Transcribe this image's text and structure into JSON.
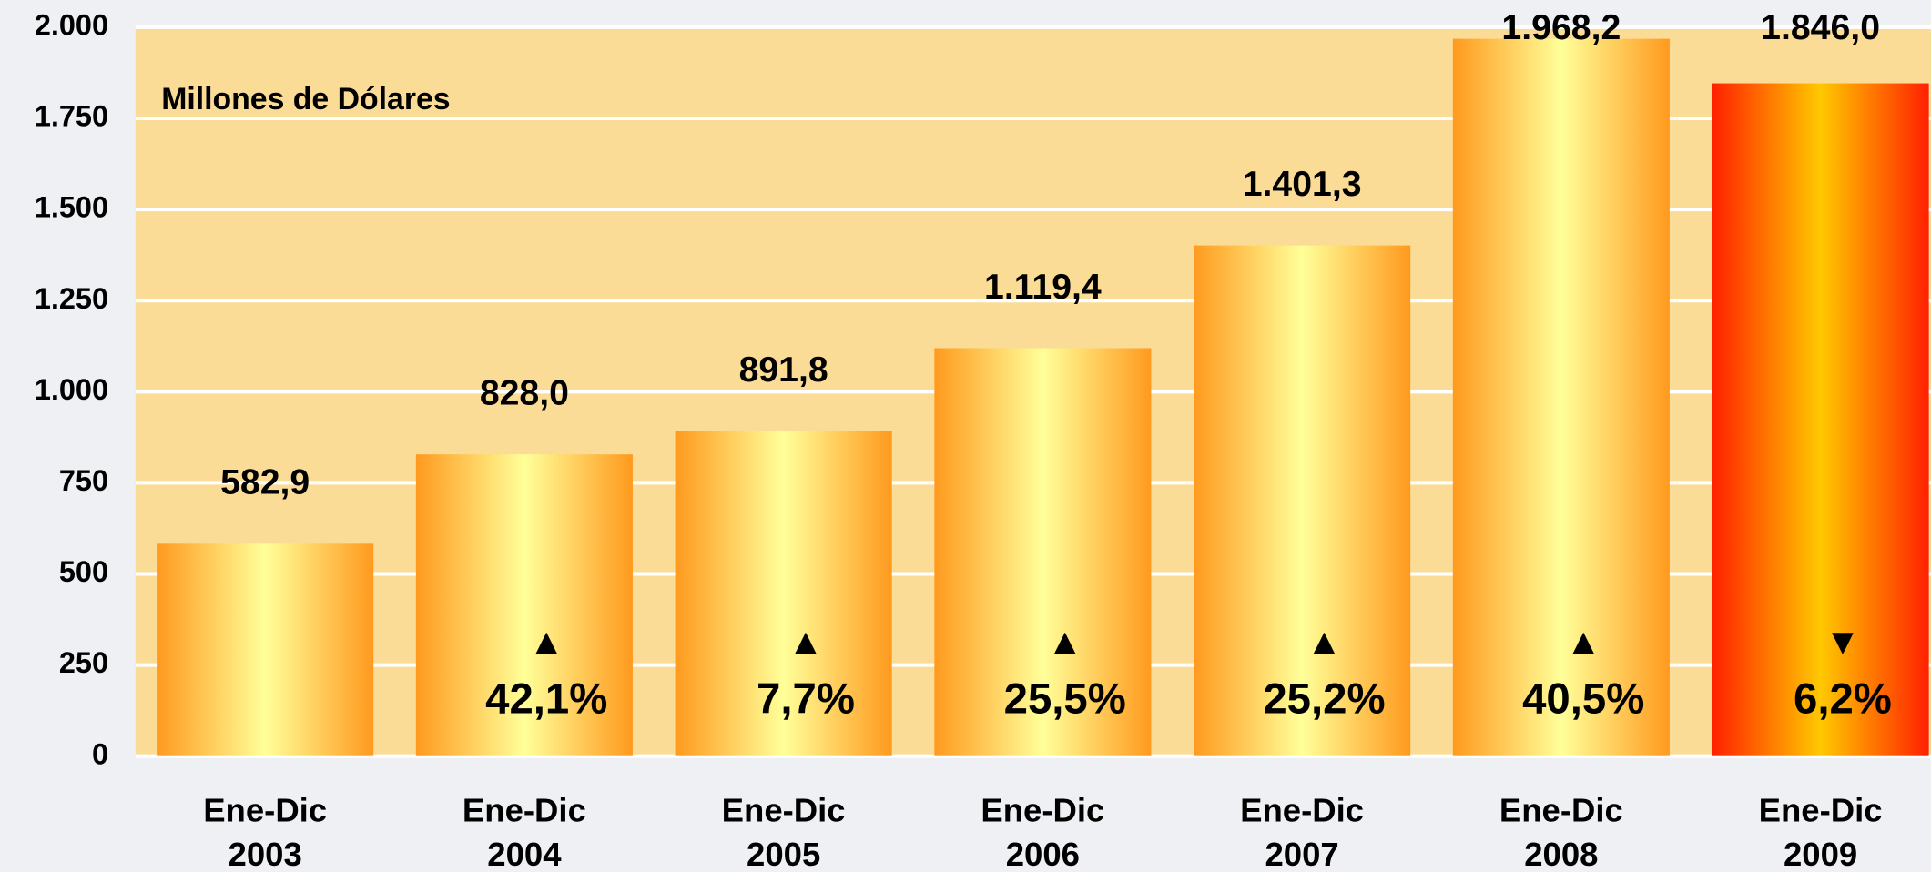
{
  "chart_data": {
    "type": "bar",
    "y_axis_label": "Millones de Dólares",
    "categories": [
      [
        "Ene-Dic",
        "2003"
      ],
      [
        "Ene-Dic",
        "2004"
      ],
      [
        "Ene-Dic",
        "2005"
      ],
      [
        "Ene-Dic",
        "2006"
      ],
      [
        "Ene-Dic",
        "2007"
      ],
      [
        "Ene-Dic",
        "2008"
      ],
      [
        "Ene-Dic",
        "2009"
      ]
    ],
    "values": [
      582.9,
      828.0,
      891.8,
      1119.4,
      1401.3,
      1968.2,
      1846.0
    ],
    "value_labels": [
      "582,9",
      "828,0",
      "891,8",
      "1.119,4",
      "1.401,3",
      "1.968,2",
      "1.846,0"
    ],
    "change_arrows": [
      null,
      "▲",
      "▲",
      "▲",
      "▲",
      "▲",
      "▼"
    ],
    "change_labels": [
      null,
      "42,1%",
      "7,7%",
      "25,5%",
      "25,2%",
      "40,5%",
      "6,2%"
    ],
    "colors": [
      "#ff9a1e",
      "#ff9a1e",
      "#ff9a1e",
      "#ff9a1e",
      "#ff9a1e",
      "#ff9a1e",
      "#ff2000"
    ],
    "highlight_colors": [
      "#ffff99",
      "#ffff99",
      "#ffff99",
      "#ffff99",
      "#ffff99",
      "#ffff99",
      "#ffc800"
    ],
    "plot_background": "#fadc96",
    "ylim": [
      0,
      2000
    ],
    "yticks": [
      0,
      250,
      500,
      750,
      {
        "value": 1000,
        "label": "1.000"
      },
      {
        "value": 1250,
        "label": "1.250"
      },
      {
        "value": 1500,
        "label": "1.500"
      },
      {
        "value": 1750,
        "label": "1.750"
      },
      {
        "value": 2000,
        "label": "2.000"
      }
    ],
    "grid": true
  }
}
